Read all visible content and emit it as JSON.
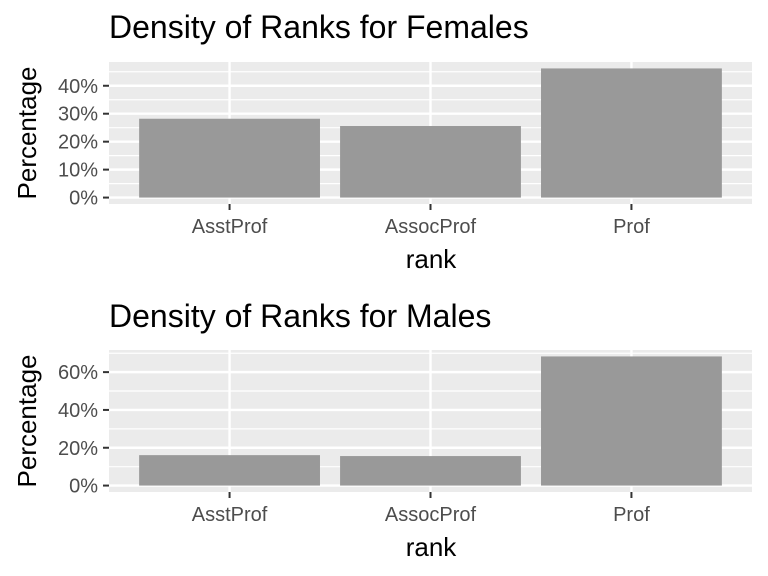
{
  "chart_data": [
    {
      "type": "bar",
      "title": "Density of Ranks for Females",
      "xlabel": "rank",
      "ylabel": "Percentage",
      "categories": [
        "AsstProf",
        "AssocProf",
        "Prof"
      ],
      "values": [
        0.282,
        0.256,
        0.462
      ],
      "yticks": [
        0,
        0.1,
        0.2,
        0.3,
        0.4
      ],
      "ytick_labels": [
        "0%",
        "10%",
        "20%",
        "30%",
        "40%"
      ],
      "ylim": [
        -0.023,
        0.485
      ],
      "bar_color": "#999999",
      "panel_color": "#EBEBEB",
      "grid": true,
      "legend": "none"
    },
    {
      "type": "bar",
      "title": "Density of Ranks for Males",
      "xlabel": "rank",
      "ylabel": "Percentage",
      "categories": [
        "AsstProf",
        "AssocProf",
        "Prof"
      ],
      "values": [
        0.161,
        0.156,
        0.683
      ],
      "yticks": [
        0,
        0.2,
        0.4,
        0.6
      ],
      "ytick_labels": [
        "0%",
        "20%",
        "40%",
        "60%"
      ],
      "ylim": [
        -0.034,
        0.717
      ],
      "bar_color": "#999999",
      "panel_color": "#EBEBEB",
      "grid": true,
      "legend": "none"
    }
  ]
}
